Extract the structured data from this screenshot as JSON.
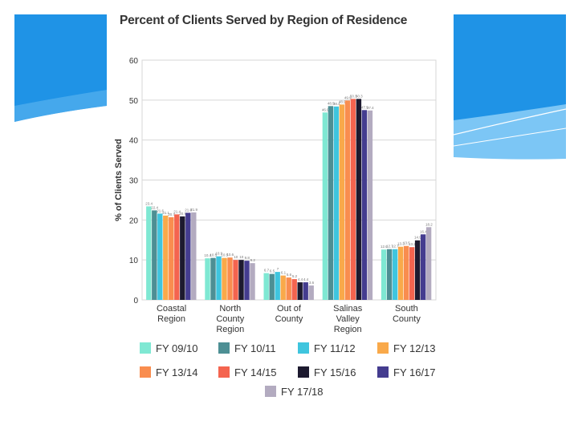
{
  "colors": {
    "slide_wave": "#1f93e6",
    "slide_wave_light": "#7cc6f5",
    "grid": "#d7d7d7",
    "axis": "#8a8a8a",
    "text": "#333333"
  },
  "chart_data": {
    "type": "bar",
    "title": "Percent of Clients Served by Region of Residence",
    "xlabel": "",
    "ylabel": "% of Clients Served",
    "ylim": [
      0,
      60
    ],
    "yticks": [
      "0",
      "10",
      "20",
      "30",
      "40",
      "50",
      "60"
    ],
    "grid": true,
    "legend_position": "bottom",
    "categories": [
      [
        "Coastal",
        "Region"
      ],
      [
        "North",
        "County",
        "Region"
      ],
      [
        "Out of",
        "County"
      ],
      [
        "Salinas",
        "Valley",
        "Region"
      ],
      [
        "South",
        "County"
      ]
    ],
    "series": [
      {
        "name": "FY 09/10",
        "color": "#7fe8d3",
        "values": [
          23.4,
          10.4,
          6.7,
          46.9,
          12.6
        ]
      },
      {
        "name": "FY 10/11",
        "color": "#4d8f94",
        "values": [
          22.4,
          10.5,
          6.5,
          48.5,
          12.7
        ]
      },
      {
        "name": "FY 11/12",
        "color": "#3fc5de",
        "values": [
          21.6,
          10.9,
          7.0,
          48.4,
          12.7
        ]
      },
      {
        "name": "FY 12/13",
        "color": "#f9a94a",
        "values": [
          21.1,
          10.5,
          6.1,
          48.9,
          13.3
        ]
      },
      {
        "name": "FY 13/14",
        "color": "#f98d4f",
        "values": [
          20.7,
          10.6,
          5.6,
          49.9,
          13.5
        ]
      },
      {
        "name": "FY 14/15",
        "color": "#f4644f",
        "values": [
          21.4,
          10.0,
          5.2,
          50.3,
          13.2
        ]
      },
      {
        "name": "FY 15/16",
        "color": "#1d1a2f",
        "values": [
          20.9,
          10.0,
          4.4,
          50.3,
          14.9
        ]
      },
      {
        "name": "FY 16/17",
        "color": "#443c8f",
        "values": [
          21.8,
          9.8,
          4.4,
          47.5,
          16.4
        ]
      },
      {
        "name": "FY 17/18",
        "color": "#b3abc0",
        "values": [
          21.9,
          9.2,
          3.6,
          47.4,
          18.2
        ]
      }
    ]
  }
}
